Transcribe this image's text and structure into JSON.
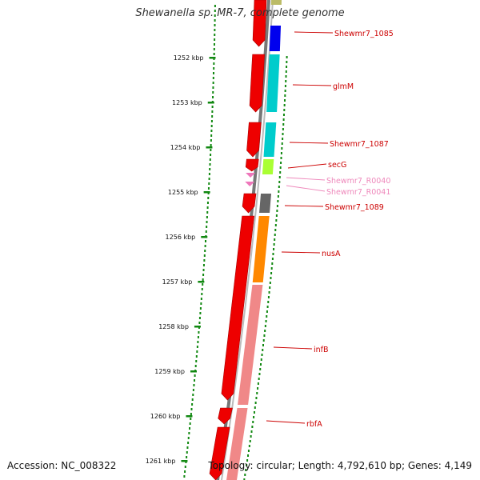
{
  "title": "Shewanella sp. MR-7, complete genome",
  "footer": {
    "accession": "Accession: NC_008322",
    "stats": "Topology: circular; Length: 4,792,610 bp; Genes: 4,149"
  },
  "ticks": [
    "1252 kbp",
    "1253 kbp",
    "1254 kbp",
    "1255 kbp",
    "1256 kbp",
    "1257 kbp",
    "1258 kbp",
    "1259 kbp",
    "1260 kbp",
    "1261 kbp"
  ],
  "genes": [
    {
      "name": "Shewmr7_1085",
      "color": "#cc0000"
    },
    {
      "name": "glmM",
      "color": "#cc0000"
    },
    {
      "name": "Shewmr7_1087",
      "color": "#cc0000"
    },
    {
      "name": "secG",
      "color": "#cc0000"
    },
    {
      "name": "Shewmr7_R0040",
      "color": "#ee88bb"
    },
    {
      "name": "Shewmr7_R0041",
      "color": "#ee88bb"
    },
    {
      "name": "Shewmr7_1089",
      "color": "#cc0000"
    },
    {
      "name": "nusA",
      "color": "#cc0000"
    },
    {
      "name": "infB",
      "color": "#cc0000"
    },
    {
      "name": "rbfA",
      "color": "#cc0000"
    }
  ],
  "colors": {
    "cds": "#ee0000",
    "rna": "#ee77bb",
    "backbone": "#888888",
    "gc_ticks": "#118811"
  },
  "cog_colors": [
    "#0000ee",
    "#00cccc",
    "#00cccc",
    "#aaff33",
    "#666666",
    "#ff8800",
    "#f08888",
    "#f08888"
  ]
}
